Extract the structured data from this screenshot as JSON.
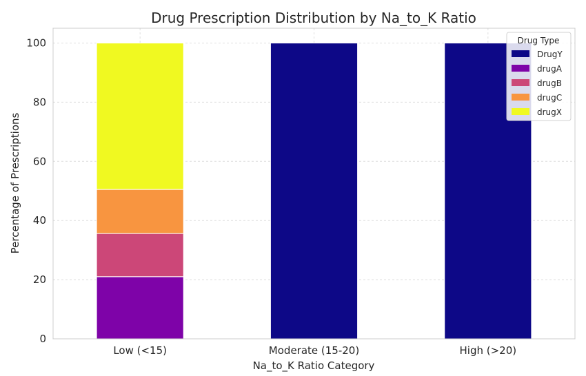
{
  "chart_data": {
    "type": "bar",
    "stacked": true,
    "title": "Drug Prescription Distribution by Na_to_K Ratio",
    "xlabel": "Na_to_K Ratio Category",
    "ylabel": "Percentage of Prescriptions",
    "categories": [
      "Low (<15)",
      "Moderate (15-20)",
      "High (>20)"
    ],
    "ylim": [
      0,
      105
    ],
    "yticks": [
      0,
      20,
      40,
      60,
      80,
      100
    ],
    "grid": true,
    "legend": {
      "title": "Drug Type",
      "placement": "top-right"
    },
    "series": [
      {
        "name": "DrugY",
        "color": "#0d0887",
        "values": [
          0,
          100,
          100
        ]
      },
      {
        "name": "drugA",
        "color": "#7e03a8",
        "values": [
          21,
          0,
          0
        ]
      },
      {
        "name": "drugB",
        "color": "#cc4778",
        "values": [
          14.6,
          0,
          0
        ]
      },
      {
        "name": "drugC",
        "color": "#f89540",
        "values": [
          14.9,
          0,
          0
        ]
      },
      {
        "name": "drugX",
        "color": "#f0f921",
        "values": [
          49.5,
          0,
          0
        ]
      }
    ]
  }
}
